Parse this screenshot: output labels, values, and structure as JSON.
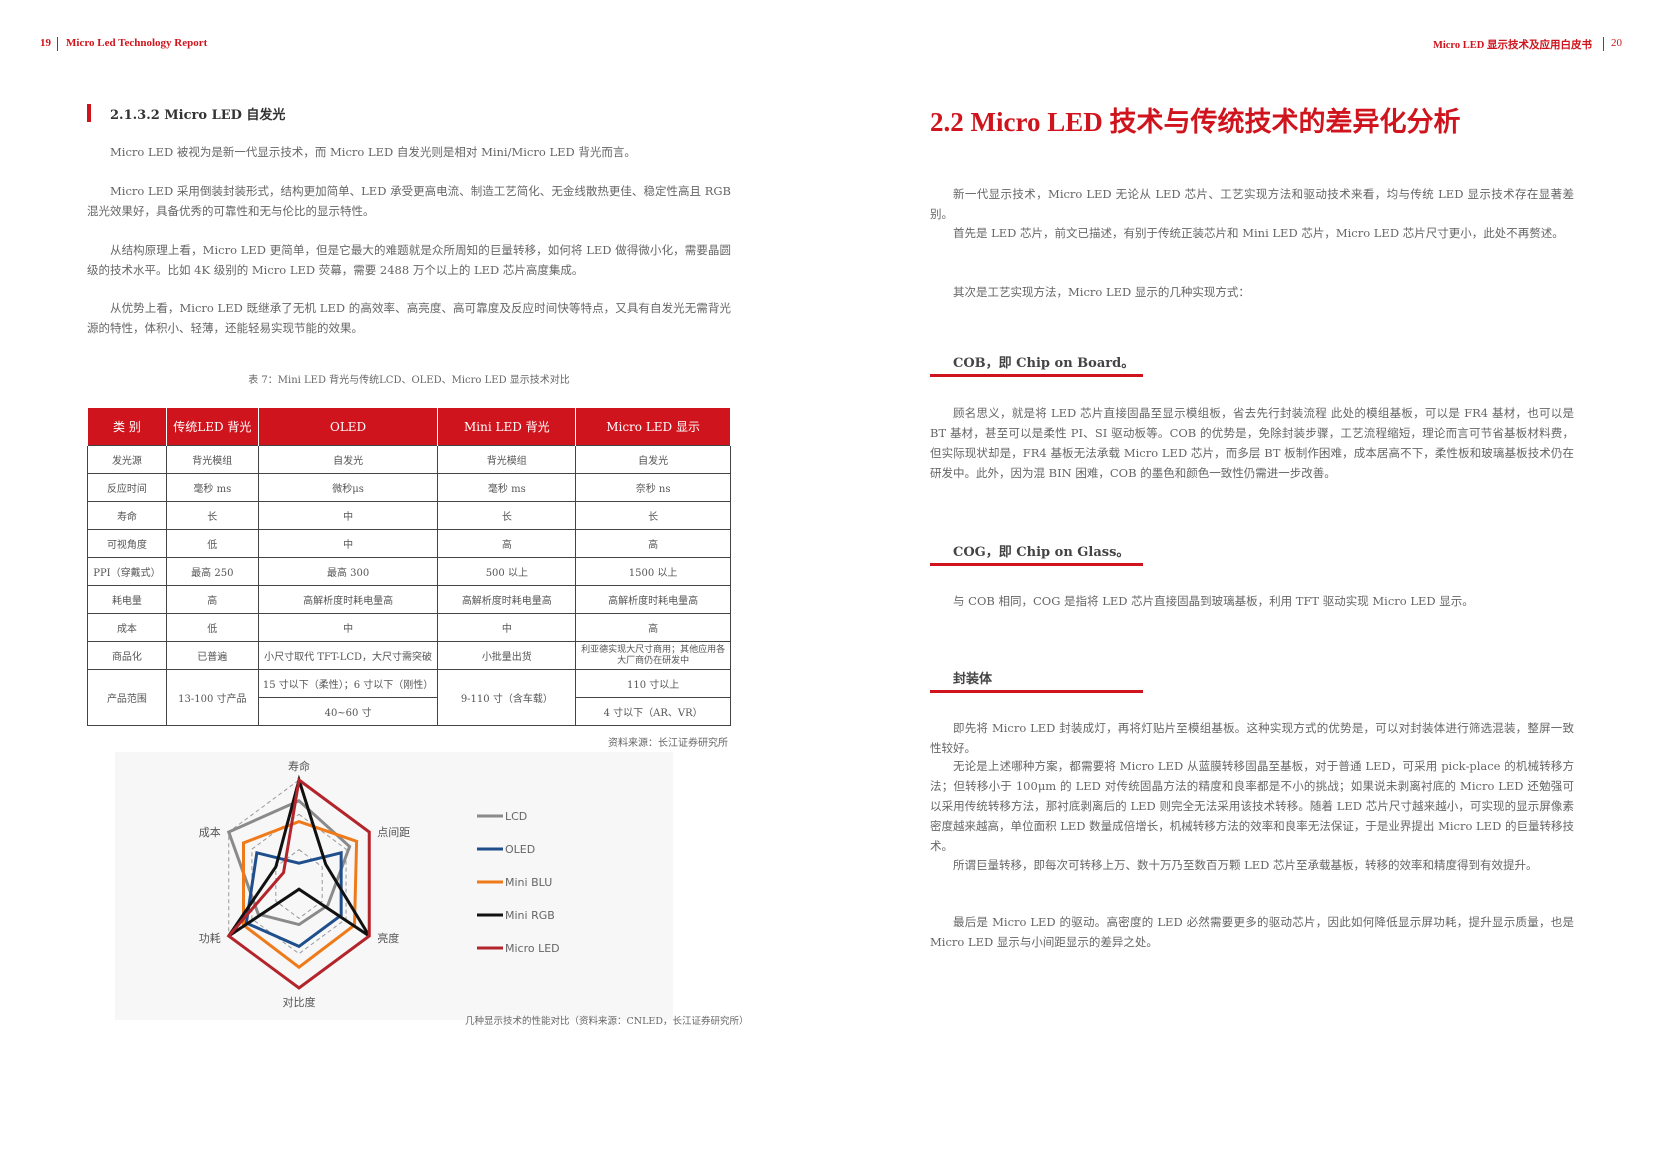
{
  "header": {
    "left_page_number": "19",
    "left_title": "Micro Led Technology Report",
    "right_title": "Micro LED 显示技术及应用白皮书",
    "right_page_number": "20"
  },
  "left": {
    "section_title": "2.1.3.2 Micro LED 自发光",
    "paragraphs": [
      "Micro LED 被视为是新一代显示技术，而 Micro LED 自发光则是相对 Mini/Micro LED 背光而言。",
      "Micro LED 采用倒装封装形式，结构更加简单、LED 承受更高电流、制造工艺简化、无金线散热更佳、稳定性高且 RGB 混光效果好，具备优秀的可靠性和无与伦比的显示特性。",
      "从结构原理上看，Micro LED 更简单，但是它最大的难题就是众所周知的巨量转移，如何将 LED 做得微小化，需要晶圆级的技术水平。比如 4K 级别的 Micro LED 荧幕，需要 2488 万个以上的 LED 芯片高度集成。",
      "从优势上看，Micro LED 既继承了无机 LED 的高效率、高亮度、高可靠度及反应时间快等特点，又具有自发光无需背光源的特性，体积小、轻薄，还能轻易实现节能的效果。"
    ],
    "table_caption": "表 7：Mini LED 背光与传统LCD、OLED、Micro LED 显示技术对比",
    "table": {
      "headers": [
        "类 别",
        "传统LED 背光",
        "OLED",
        "Mini LED 背光",
        "Micro LED 显示"
      ],
      "rows": [
        [
          "发光源",
          "背光模组",
          "自发光",
          "背光模组",
          "自发光"
        ],
        [
          "反应时间",
          "毫秒 ms",
          "微秒μs",
          "毫秒 ms",
          "奈秒 ns"
        ],
        [
          "寿命",
          "长",
          "中",
          "长",
          "长"
        ],
        [
          "可视角度",
          "低",
          "中",
          "高",
          "高"
        ],
        [
          "PPI（穿戴式）",
          "最高 250",
          "最高 300",
          "500 以上",
          "1500 以上"
        ],
        [
          "耗电量",
          "高",
          "高解析度时耗电量高",
          "高解析度时耗电量高",
          "高解析度时耗电量高"
        ],
        [
          "成本",
          "低",
          "中",
          "中",
          "高"
        ],
        [
          "商品化",
          "已普遍",
          "小尺寸取代 TFT-LCD，大尺寸需突破",
          "小批量出货",
          "利亚德实现大尺寸商用；其他应用各大厂商仍在研发中"
        ]
      ],
      "last_row": {
        "label": "产品范围",
        "lcd": "13-100 寸产品",
        "oled_1": "15 寸以下（柔性）；6 寸以下（刚性）",
        "oled_2": "40~60 寸",
        "mini": "9-110 寸（含车载）",
        "micro_1": "110 寸以上",
        "micro_2": "4 寸以下（AR、VR）"
      }
    },
    "table_source": "资料来源：长江证券研究所",
    "chart_caption": "几种显示技术的性能对比（资料来源：CNLED，长江证券研究所）"
  },
  "chart_data": {
    "type": "radar",
    "axes": [
      "寿命",
      "点间距",
      "亮度",
      "对比度",
      "功耗",
      "成本"
    ],
    "range": [
      0,
      1
    ],
    "grid": "dashed hexagons",
    "legend_position": "right",
    "series": [
      {
        "name": "LCD",
        "color": "#8a8a8a",
        "values": [
          0.8,
          0.72,
          0.41,
          0.39,
          0.58,
          1.0
        ]
      },
      {
        "name": "OLED",
        "color": "#1f4e8c",
        "values": [
          0.2,
          0.6,
          0.6,
          0.6,
          0.75,
          0.6
        ]
      },
      {
        "name": "Mini BLU",
        "color": "#ef7a1a",
        "values": [
          0.6,
          0.82,
          0.79,
          0.8,
          0.79,
          0.79
        ]
      },
      {
        "name": "Mini RGB",
        "color": "#111111",
        "values": [
          1.0,
          0.38,
          1.0,
          0.05,
          1.0,
          0.33
        ]
      },
      {
        "name": "Micro LED",
        "color": "#b3242b",
        "values": [
          1.0,
          1.0,
          1.0,
          1.0,
          1.0,
          0.22
        ]
      }
    ]
  },
  "right": {
    "section_title": "2.2  Micro LED 技术与传统技术的差异化分析",
    "intro": [
      "新一代显示技术，Micro LED 无论从 LED 芯片、工艺实现方法和驱动技术来看，均与传统 LED 显示技术存在显著差别。",
      "首先是 LED 芯片，前文已描述，有别于传统正装芯片和 Mini LED 芯片，Micro LED 芯片尺寸更小，此处不再赘述。",
      "其次是工艺实现方法，Micro LED 显示的几种实现方式："
    ],
    "cob_title": "COB，即 Chip on Board。",
    "cob_text": "顾名思义，就是将 LED 芯片直接固晶至显示模组板，省去先行封装流程 此处的模组基板，可以是 FR4 基材，也可以是 BT 基材，甚至可以是柔性 PI、SI 驱动板等。COB 的优势是，免除封装步骤，工艺流程缩短，理论而言可节省基板材料费，但实际现状却是，FR4 基板无法承载 Micro LED 芯片，而多层 BT 板制作困难，成本居高不下，柔性板和玻璃基板技术仍在研发中。此外，因为混 BIN 困难，COB 的墨色和颜色一致性仍需进一步改善。",
    "cog_title": "COG，即 Chip on Glass。",
    "cog_text": "与 COB 相同，COG 是指将 LED 芯片直接固晶到玻璃基板，利用 TFT 驱动实现 Micro LED 显示。",
    "pkg_title": "封装体",
    "pkg_text": "即先将 Micro LED 封装成灯，再将灯贴片至模组基板。这种实现方式的优势是，可以对封装体进行筛选混装，整屏一致性较好。",
    "transfer_text": "无论是上述哪种方案，都需要将 Micro LED 从蓝膜转移固晶至基板，对于普通 LED，可采用 pick-place 的机械转移方法；但转移小于 100μm 的 LED 对传统固晶方法的精度和良率都是不小的挑战；如果说未剥离衬底的 Micro LED 还勉强可以采用传统转移方法，那衬底剥离后的 LED 则完全无法采用该技术转移。随着 LED 芯片尺寸越来越小，可实现的显示屏像素密度越来越高，单位面积 LED 数量成倍增长，机械转移方法的效率和良率无法保证，于是业界提出 Micro LED 的巨量转移技术。",
    "mass_text": "所谓巨量转移，即每次可转移上万、数十万乃至数百万颗 LED 芯片至承载基板，转移的效率和精度得到有效提升。",
    "drive_text": "最后是 Micro LED 的驱动。高密度的 LED 必然需要更多的驱动芯片，因此如何降低显示屏功耗，提升显示质量，也是 Micro LED 显示与小间距显示的差异之处。"
  },
  "colors": {
    "accent": "#d0141d"
  }
}
